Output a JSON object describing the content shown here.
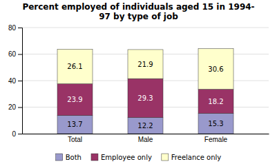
{
  "chart_data": {
    "type": "bar",
    "stacked": true,
    "title": "Percent employed of individuals aged 15 in 1994-\n97 by type of job",
    "categories": [
      "Total",
      "Male",
      "Female"
    ],
    "series": [
      {
        "name": "Both",
        "color": "#9999cc",
        "values": [
          13.7,
          12.2,
          15.3
        ]
      },
      {
        "name": "Employee only",
        "color": "#993366",
        "values": [
          23.9,
          29.3,
          18.2
        ]
      },
      {
        "name": "Freelance only",
        "color": "#ffffcc",
        "values": [
          26.1,
          21.9,
          30.6
        ]
      }
    ],
    "ylim": [
      0,
      80
    ],
    "yticks": [
      0,
      20,
      40,
      60,
      80
    ],
    "grid": true,
    "legend": "bottom",
    "data_labels": true
  }
}
